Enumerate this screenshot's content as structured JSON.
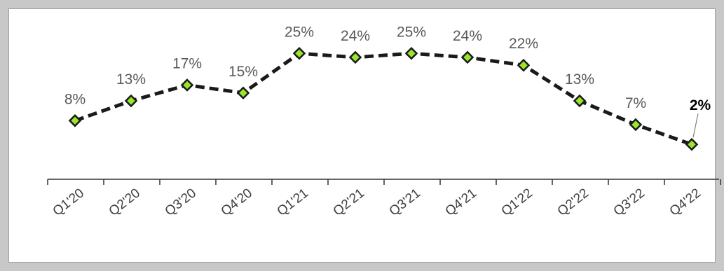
{
  "chart_data": {
    "type": "line",
    "categories": [
      "Q1'20",
      "Q2'20",
      "Q3'20",
      "Q4'20",
      "Q1'21",
      "Q2'21",
      "Q3'21",
      "Q4'21",
      "Q1'22",
      "Q2'22",
      "Q3'22",
      "Q4'22"
    ],
    "values": [
      8,
      13,
      17,
      15,
      25,
      24,
      25,
      24,
      22,
      13,
      7,
      2
    ],
    "data_labels": [
      "8%",
      "13%",
      "17%",
      "15%",
      "25%",
      "24%",
      "25%",
      "24%",
      "22%",
      "13%",
      "7%",
      "2%"
    ],
    "highlighted_label_index": 11,
    "title": "",
    "xlabel": "",
    "ylabel": "",
    "ylim": [
      -10,
      30
    ],
    "grid": false,
    "legend": "none",
    "line_style": "dashed",
    "colors": {
      "line": "#1a1a1a",
      "marker_fill": "#9be52c",
      "marker_edge": "#1a1a1a",
      "label": "#595959",
      "label_highlight": "#000000",
      "axis": "#333333"
    }
  }
}
